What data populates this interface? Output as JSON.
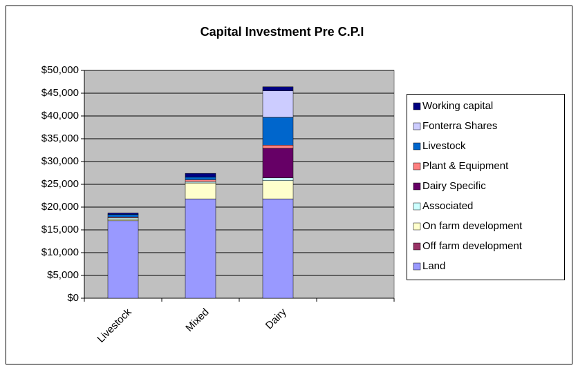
{
  "chart_data": {
    "type": "stacked-bar",
    "title": "Capital Investment Pre C.P.I",
    "categories": [
      "Livestock",
      "Mixed",
      "Dairy",
      null
    ],
    "series": [
      {
        "name": "Land",
        "color": "#9999ff",
        "values": [
          17000,
          21800,
          21800,
          null
        ]
      },
      {
        "name": "Off farm development",
        "color": "#993366",
        "values": [
          0,
          0,
          0,
          null
        ]
      },
      {
        "name": "On farm development",
        "color": "#ffffcc",
        "values": [
          300,
          3500,
          4000,
          null
        ]
      },
      {
        "name": "Associated",
        "color": "#ccffff",
        "values": [
          300,
          300,
          600,
          null
        ]
      },
      {
        "name": "Dairy Specific",
        "color": "#660066",
        "values": [
          0,
          0,
          6500,
          null
        ]
      },
      {
        "name": "Plant & Equipment",
        "color": "#ff8080",
        "values": [
          200,
          400,
          700,
          null
        ]
      },
      {
        "name": "Livestock",
        "color": "#0066cc",
        "values": [
          600,
          600,
          6100,
          null
        ]
      },
      {
        "name": "Fonterra Shares",
        "color": "#ccccff",
        "values": [
          0,
          0,
          5800,
          null
        ]
      },
      {
        "name": "Working capital",
        "color": "#000080",
        "values": [
          300,
          800,
          900,
          null
        ]
      }
    ],
    "ylim": [
      0,
      50000
    ],
    "yticks": [
      {
        "value": 0,
        "label": "$0"
      },
      {
        "value": 5000,
        "label": "$5,000"
      },
      {
        "value": 10000,
        "label": "$10,000"
      },
      {
        "value": 15000,
        "label": "$15,000"
      },
      {
        "value": 20000,
        "label": "$20,000"
      },
      {
        "value": 25000,
        "label": "$25,000"
      },
      {
        "value": 30000,
        "label": "$30,000"
      },
      {
        "value": 35000,
        "label": "$35,000"
      },
      {
        "value": 40000,
        "label": "$40,000"
      },
      {
        "value": 45000,
        "label": "$45,000"
      },
      {
        "value": 50000,
        "label": "$50,000"
      }
    ],
    "grid": true,
    "legend": "right",
    "plot_background": "#c0c0c0"
  }
}
